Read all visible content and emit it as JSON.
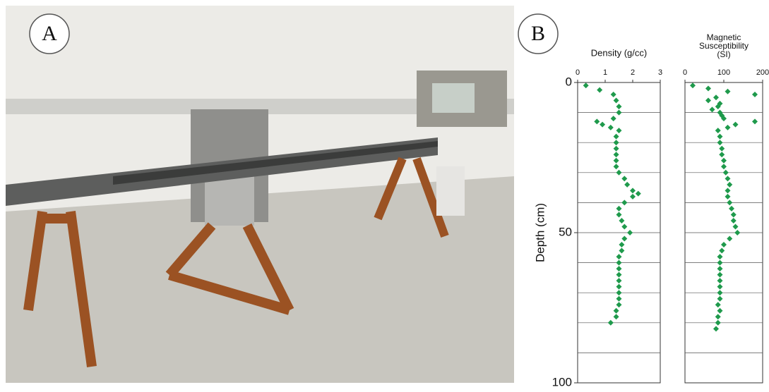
{
  "panels": {
    "a": "A",
    "b": "B"
  },
  "chart_data": [
    {
      "type": "scatter",
      "title": "Density (g/cc)",
      "color": "#1f9a4c",
      "xlim": [
        0,
        3
      ],
      "xticks": [
        0,
        1,
        2,
        3
      ],
      "ylim": [
        0,
        100
      ],
      "y_inverted": true,
      "ylabel": "Depth (cm)",
      "yticks": [
        0,
        50,
        100
      ],
      "ygrid": [
        10,
        20,
        30,
        40,
        50,
        60,
        70,
        80,
        90
      ],
      "x": [
        0.3,
        0.8,
        1.3,
        1.4,
        1.5,
        1.5,
        1.3,
        0.7,
        0.9,
        1.2,
        1.5,
        1.4,
        1.4,
        1.4,
        1.4,
        1.4,
        1.4,
        1.5,
        1.7,
        1.8,
        2.0,
        2.2,
        2.0,
        1.7,
        1.5,
        1.5,
        1.6,
        1.7,
        1.9,
        1.7,
        1.6,
        1.6,
        1.5,
        1.5,
        1.5,
        1.5,
        1.5,
        1.5,
        1.5,
        1.5,
        1.5,
        1.4,
        1.4,
        1.2
      ],
      "y": [
        1,
        2.5,
        4,
        6,
        8,
        10,
        12,
        13,
        14,
        15,
        16,
        18,
        20,
        22,
        24,
        26,
        28,
        30,
        32,
        34,
        36,
        37,
        38,
        40,
        42,
        44,
        46,
        48,
        50,
        52,
        54,
        56,
        58,
        60,
        62,
        64,
        66,
        68,
        70,
        72,
        74,
        76,
        78,
        80
      ]
    },
    {
      "type": "scatter",
      "title": [
        "Magnetic",
        "Susceptibility",
        "(SI)"
      ],
      "color": "#1f9a4c",
      "xlim": [
        0,
        200
      ],
      "xticks": [
        0,
        100,
        200
      ],
      "ylim": [
        0,
        100
      ],
      "y_inverted": true,
      "ygrid": [
        10,
        20,
        30,
        40,
        50,
        60,
        70,
        80,
        90
      ],
      "x": [
        20,
        60,
        110,
        180,
        80,
        60,
        90,
        85,
        70,
        90,
        95,
        100,
        180,
        130,
        110,
        85,
        90,
        90,
        95,
        95,
        100,
        100,
        105,
        110,
        115,
        110,
        110,
        115,
        120,
        125,
        125,
        130,
        135,
        115,
        100,
        95,
        90,
        90,
        90,
        90,
        90,
        90,
        90,
        90,
        85,
        90,
        85,
        85,
        80
      ],
      "y": [
        1,
        2,
        3,
        4,
        5,
        6,
        7,
        8,
        9,
        10,
        11,
        12,
        13,
        14,
        15,
        16,
        18,
        20,
        22,
        24,
        26,
        28,
        30,
        32,
        34,
        36,
        38,
        40,
        42,
        44,
        46,
        48,
        50,
        52,
        54,
        56,
        58,
        60,
        62,
        64,
        66,
        68,
        70,
        72,
        74,
        76,
        78,
        80,
        82
      ]
    }
  ]
}
